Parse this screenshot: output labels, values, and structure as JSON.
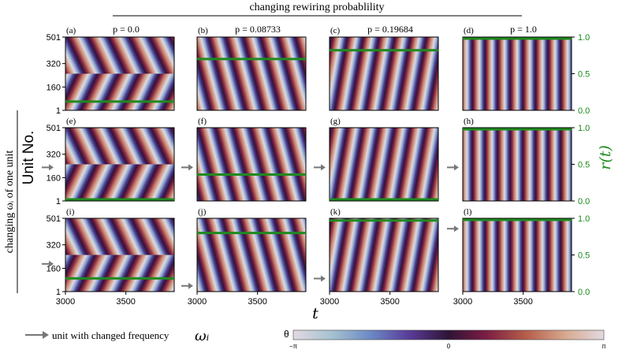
{
  "chart_data": {
    "type": "heatmap",
    "suptitle": "changing rewiring probablility",
    "row_label": "changing ωᵢ of one unit",
    "ylabel": "Unit No.",
    "y2label": "r(t)",
    "xlabel": "t",
    "yticks": [
      "1",
      "160",
      "320",
      "501"
    ],
    "y2ticks": [
      "0.0",
      "0.5",
      "1.0"
    ],
    "xticks": [
      "3000",
      "3500"
    ],
    "xlim": [
      3000,
      3900
    ],
    "ylim": [
      1,
      501
    ],
    "y2lim": [
      0.0,
      1.0
    ],
    "columns": [
      {
        "title": "p = 0.0"
      },
      {
        "title": "p = 0.08733"
      },
      {
        "title": "p = 0.19684"
      },
      {
        "title": "p = 1.0"
      }
    ],
    "panels": [
      {
        "label": "(a)",
        "r": 0.12,
        "arrow_unit": null
      },
      {
        "label": "(b)",
        "r": 0.7,
        "arrow_unit": null
      },
      {
        "label": "(c)",
        "r": 0.82,
        "arrow_unit": null
      },
      {
        "label": "(d)",
        "r": 0.99,
        "arrow_unit": null
      },
      {
        "label": "(e)",
        "r": 0.02,
        "arrow_unit": 230
      },
      {
        "label": "(f)",
        "r": 0.36,
        "arrow_unit": 230
      },
      {
        "label": "(g)",
        "r": 0.0,
        "arrow_unit": 230
      },
      {
        "label": "(h)",
        "r": 0.99,
        "arrow_unit": 230
      },
      {
        "label": "(i)",
        "r": 0.18,
        "arrow_unit": 190
      },
      {
        "label": "(j)",
        "r": 0.8,
        "arrow_unit": 40
      },
      {
        "label": "(k)",
        "r": 0.97,
        "arrow_unit": 90
      },
      {
        "label": "(l)",
        "r": 0.99,
        "arrow_unit": 430
      }
    ],
    "colorbar": {
      "label": "θ",
      "ticks": [
        "−π",
        "0",
        "π"
      ],
      "range": [
        -3.14159,
        3.14159
      ]
    },
    "legend": {
      "text": "unit with changed frequency",
      "symbol": "ωᵢ"
    }
  },
  "colors": {
    "r_line": "#1f8a1f",
    "arrow": "#777777",
    "right_axis": "#1b8a1b"
  }
}
